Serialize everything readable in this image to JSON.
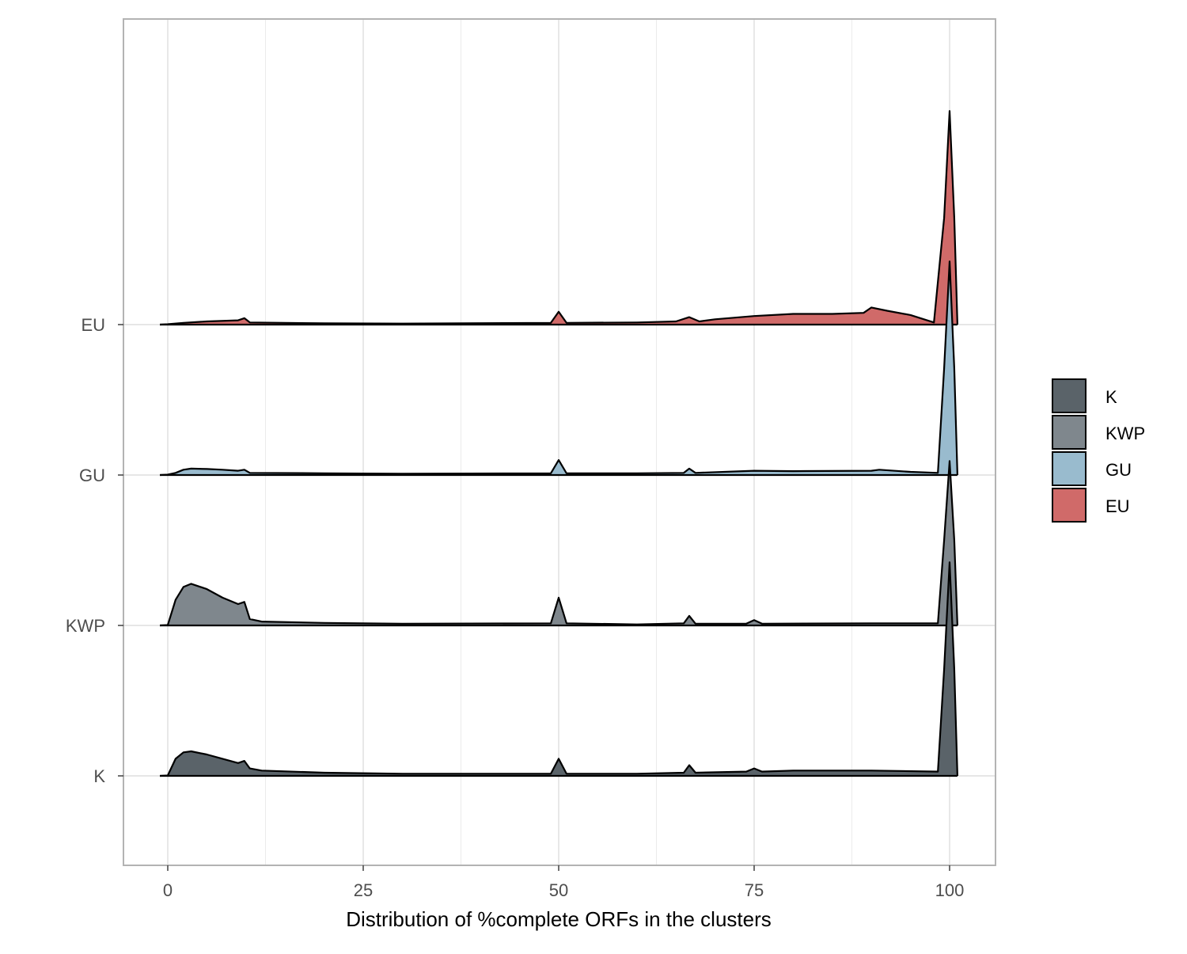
{
  "chart_data": {
    "type": "area",
    "subtype": "ridgeline-density",
    "title": "",
    "xlabel": "Distribution of %complete ORFs in the clusters",
    "ylabel": "",
    "xlim": [
      -5,
      106
    ],
    "x_ticks": [
      0,
      25,
      50,
      75,
      100
    ],
    "x_tick_labels": [
      "0",
      "25",
      "50",
      "75",
      "100"
    ],
    "categories": [
      "K",
      "KWP",
      "GU",
      "EU"
    ],
    "grid": true,
    "legend": {
      "position": "right",
      "order": [
        "K",
        "KWP",
        "GU",
        "EU"
      ]
    },
    "colors": {
      "K": "#5a6369",
      "KWP": "#7f878d",
      "GU": "#99bbce",
      "EU": "#d06a69"
    },
    "series": [
      {
        "name": "K",
        "height_scale": 1.42,
        "peak_at_100": 1.0,
        "density_profile": [
          [
            -1,
            0
          ],
          [
            0,
            0.002
          ],
          [
            1,
            0.08
          ],
          [
            2,
            0.11
          ],
          [
            3,
            0.115
          ],
          [
            5,
            0.1
          ],
          [
            7,
            0.08
          ],
          [
            9,
            0.06
          ],
          [
            9.8,
            0.07
          ],
          [
            10.5,
            0.035
          ],
          [
            12,
            0.025
          ],
          [
            20,
            0.015
          ],
          [
            30,
            0.01
          ],
          [
            49,
            0.01
          ],
          [
            50,
            0.08
          ],
          [
            51,
            0.01
          ],
          [
            60,
            0.01
          ],
          [
            66,
            0.015
          ],
          [
            66.7,
            0.05
          ],
          [
            67.5,
            0.015
          ],
          [
            74,
            0.02
          ],
          [
            75,
            0.035
          ],
          [
            76,
            0.02
          ],
          [
            80,
            0.025
          ],
          [
            90,
            0.025
          ],
          [
            98.5,
            0.02
          ],
          [
            99.3,
            0.5
          ],
          [
            100,
            1.0
          ],
          [
            100.6,
            0.5
          ],
          [
            101,
            0
          ]
        ]
      },
      {
        "name": "KWP",
        "height_scale": 1.42,
        "peak_at_100": 0.77,
        "density_profile": [
          [
            -1,
            0
          ],
          [
            0,
            0.002
          ],
          [
            1,
            0.12
          ],
          [
            2,
            0.18
          ],
          [
            3,
            0.195
          ],
          [
            5,
            0.17
          ],
          [
            7,
            0.13
          ],
          [
            9,
            0.1
          ],
          [
            9.8,
            0.11
          ],
          [
            10.5,
            0.03
          ],
          [
            12,
            0.018
          ],
          [
            20,
            0.012
          ],
          [
            30,
            0.008
          ],
          [
            49,
            0.01
          ],
          [
            50,
            0.13
          ],
          [
            51,
            0.01
          ],
          [
            60,
            0.005
          ],
          [
            66,
            0.01
          ],
          [
            66.7,
            0.045
          ],
          [
            67.5,
            0.008
          ],
          [
            74,
            0.008
          ],
          [
            75,
            0.025
          ],
          [
            76,
            0.008
          ],
          [
            90,
            0.01
          ],
          [
            98.5,
            0.01
          ],
          [
            99.3,
            0.4
          ],
          [
            100,
            0.77
          ],
          [
            100.6,
            0.4
          ],
          [
            101,
            0
          ]
        ]
      },
      {
        "name": "GU",
        "height_scale": 1.42,
        "peak_at_100": 1.0,
        "density_profile": [
          [
            -1,
            0
          ],
          [
            0,
            0.002
          ],
          [
            1,
            0.01
          ],
          [
            2,
            0.025
          ],
          [
            3,
            0.03
          ],
          [
            5,
            0.028
          ],
          [
            7,
            0.025
          ],
          [
            9,
            0.02
          ],
          [
            9.8,
            0.025
          ],
          [
            10.5,
            0.01
          ],
          [
            20,
            0.008
          ],
          [
            30,
            0.006
          ],
          [
            49,
            0.008
          ],
          [
            50,
            0.07
          ],
          [
            51,
            0.008
          ],
          [
            60,
            0.008
          ],
          [
            66,
            0.01
          ],
          [
            66.7,
            0.03
          ],
          [
            67.5,
            0.01
          ],
          [
            75,
            0.02
          ],
          [
            80,
            0.018
          ],
          [
            90,
            0.02
          ],
          [
            91,
            0.025
          ],
          [
            95,
            0.015
          ],
          [
            98.5,
            0.01
          ],
          [
            99.3,
            0.5
          ],
          [
            100,
            1.0
          ],
          [
            100.6,
            0.5
          ],
          [
            101,
            0
          ]
        ]
      },
      {
        "name": "EU",
        "height_scale": 1.42,
        "peak_at_100": 1.0,
        "density_profile": [
          [
            -1,
            0
          ],
          [
            0,
            0.002
          ],
          [
            2,
            0.008
          ],
          [
            5,
            0.015
          ],
          [
            9,
            0.02
          ],
          [
            9.8,
            0.03
          ],
          [
            10.5,
            0.01
          ],
          [
            20,
            0.006
          ],
          [
            30,
            0.005
          ],
          [
            49,
            0.008
          ],
          [
            50,
            0.06
          ],
          [
            51,
            0.008
          ],
          [
            60,
            0.01
          ],
          [
            65,
            0.015
          ],
          [
            66.7,
            0.035
          ],
          [
            68,
            0.015
          ],
          [
            70,
            0.025
          ],
          [
            75,
            0.04
          ],
          [
            80,
            0.05
          ],
          [
            85,
            0.05
          ],
          [
            89,
            0.055
          ],
          [
            90,
            0.08
          ],
          [
            92,
            0.065
          ],
          [
            95,
            0.045
          ],
          [
            98,
            0.01
          ],
          [
            99.3,
            0.5
          ],
          [
            100,
            1.0
          ],
          [
            100.6,
            0.5
          ],
          [
            101,
            0
          ]
        ]
      }
    ]
  }
}
